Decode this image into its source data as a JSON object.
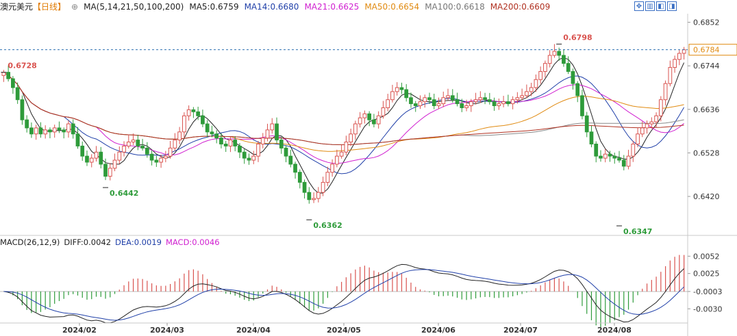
{
  "header": {
    "symbol": "澳元美元",
    "period": "【日线】",
    "ma_def": "MA(5,14,21,50,100,200)",
    "ma_values": [
      {
        "label": "MA5:0.6759",
        "color": "#222222"
      },
      {
        "label": "MA14:0.6680",
        "color": "#1f3fa8"
      },
      {
        "label": "MA21:0.6625",
        "color": "#d020d0"
      },
      {
        "label": "MA50:0.6654",
        "color": "#e08a10"
      },
      {
        "label": "MA100:0.6618",
        "color": "#777777"
      },
      {
        "label": "MA200:0.6609",
        "color": "#b03020"
      }
    ],
    "gear": "⊕",
    "tools": [
      "✥",
      "▥",
      "◧",
      "◨"
    ]
  },
  "macd_header": {
    "def": "MACD(26,12,9)",
    "diff": "DIFF:0.0042",
    "dea": "DEA:0.0019",
    "macd": "MACD:0.0046"
  },
  "chart_data": {
    "type": "candlestick",
    "price_axis": {
      "ticks": [
        "0.6852",
        "0.6744",
        "0.6636",
        "0.6528",
        "0.6420"
      ],
      "range": [
        0.6325,
        0.687
      ]
    },
    "current_price": "0.6784",
    "annotations": [
      {
        "label": "0.6728",
        "value": 0.6728,
        "kind": "high-left"
      },
      {
        "label": "0.6442",
        "value": 0.6442,
        "kind": "low"
      },
      {
        "label": "0.6362",
        "value": 0.6362,
        "kind": "low"
      },
      {
        "label": "0.6798",
        "value": 0.6798,
        "kind": "high"
      },
      {
        "label": "0.6347",
        "value": 0.6347,
        "kind": "low"
      }
    ],
    "months": [
      "2024/02",
      "2024/03",
      "2024/04",
      "2024/05",
      "2024/06",
      "2024/07",
      "2024/08"
    ],
    "macd_axis": {
      "ticks": [
        "0.0052",
        "0.0025",
        "-0.0003",
        "-0.0030"
      ],
      "range": [
        -0.005,
        0.0062
      ]
    },
    "closes": [
      0.6728,
      0.6712,
      0.669,
      0.666,
      0.661,
      0.659,
      0.6575,
      0.659,
      0.6575,
      0.6585,
      0.658,
      0.659,
      0.6585,
      0.658,
      0.66,
      0.6575,
      0.6545,
      0.652,
      0.6505,
      0.6515,
      0.653,
      0.65,
      0.647,
      0.649,
      0.651,
      0.653,
      0.6545,
      0.6555,
      0.656,
      0.6545,
      0.654,
      0.6525,
      0.651,
      0.6505,
      0.6515,
      0.652,
      0.654,
      0.656,
      0.658,
      0.662,
      0.6635,
      0.663,
      0.662,
      0.66,
      0.658,
      0.6575,
      0.6565,
      0.655,
      0.6545,
      0.656,
      0.6545,
      0.653,
      0.6515,
      0.651,
      0.652,
      0.655,
      0.6565,
      0.6585,
      0.66,
      0.656,
      0.654,
      0.652,
      0.65,
      0.648,
      0.6455,
      0.643,
      0.6412,
      0.6415,
      0.643,
      0.6455,
      0.648,
      0.65,
      0.652,
      0.653,
      0.6555,
      0.6575,
      0.66,
      0.6615,
      0.6625,
      0.661,
      0.66,
      0.662,
      0.664,
      0.666,
      0.668,
      0.669,
      0.6685,
      0.6665,
      0.665,
      0.6645,
      0.6655,
      0.6665,
      0.666,
      0.6645,
      0.665,
      0.6665,
      0.667,
      0.666,
      0.665,
      0.664,
      0.6645,
      0.6655,
      0.666,
      0.6665,
      0.666,
      0.6655,
      0.6645,
      0.665,
      0.6655,
      0.665,
      0.666,
      0.6665,
      0.667,
      0.668,
      0.669,
      0.671,
      0.673,
      0.675,
      0.677,
      0.678,
      0.677,
      0.675,
      0.673,
      0.67,
      0.667,
      0.662,
      0.658,
      0.655,
      0.652,
      0.6515,
      0.6525,
      0.652,
      0.6515,
      0.651,
      0.6495,
      0.652,
      0.655,
      0.6575,
      0.659,
      0.66,
      0.6605,
      0.662,
      0.666,
      0.67,
      0.674,
      0.676,
      0.6775,
      0.6784
    ],
    "macd_first_hist_bar": -0.0003
  }
}
